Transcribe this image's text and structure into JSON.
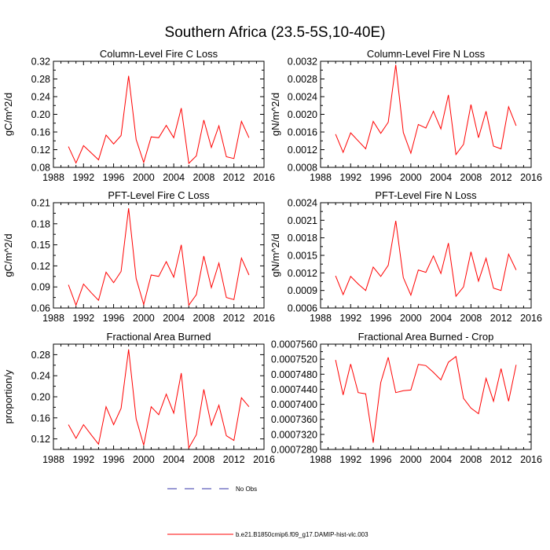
{
  "figure_title": "Southern Africa (23.5-5S,10-40E)",
  "legend": {
    "entries": [
      {
        "label": "No Obs",
        "color": "#3333aa",
        "style": "dashed"
      },
      {
        "label": "b.e21.B1850cmip6.f09_g17.DAMIP-hist-vlc.003",
        "color": "#ff0000",
        "style": "solid"
      }
    ]
  },
  "chart_data": [
    {
      "type": "line",
      "title": "Column-Level Fire C Loss",
      "xlabel": "",
      "ylabel": "gC/m^2/d",
      "xlim": [
        1988,
        2016
      ],
      "ylim": [
        0.08,
        0.32
      ],
      "xticks": [
        1988,
        1992,
        1996,
        2000,
        2004,
        2008,
        2012,
        2016
      ],
      "xtick_labels": [
        "1988",
        "1992",
        "1996",
        "2000",
        "2004",
        "2008",
        "2012",
        "2016"
      ],
      "yticks": [
        0.08,
        0.12,
        0.16,
        0.2,
        0.24,
        0.28,
        0.32
      ],
      "ytick_labels": [
        "0.08",
        "0.12",
        "0.16",
        "0.20",
        "0.24",
        "0.28",
        "0.32"
      ],
      "x": [
        1990,
        1991,
        1992,
        1993,
        1994,
        1995,
        1996,
        1997,
        1998,
        1999,
        2000,
        2001,
        2002,
        2003,
        2004,
        2005,
        2006,
        2007,
        2008,
        2009,
        2010,
        2011,
        2012,
        2013,
        2014
      ],
      "series": [
        {
          "name": "b.e21.B1850cmip6.f09_g17.DAMIP-hist-vlc.003",
          "color": "#ff0000",
          "values": [
            0.127,
            0.09,
            0.129,
            0.113,
            0.097,
            0.153,
            0.133,
            0.152,
            0.287,
            0.143,
            0.091,
            0.149,
            0.147,
            0.175,
            0.147,
            0.214,
            0.089,
            0.106,
            0.187,
            0.125,
            0.174,
            0.104,
            0.1,
            0.184,
            0.147
          ]
        }
      ]
    },
    {
      "type": "line",
      "title": "Column-Level Fire N Loss",
      "xlabel": "",
      "ylabel": "gN/m^2/d",
      "xlim": [
        1988,
        2016
      ],
      "ylim": [
        0.0008,
        0.0032
      ],
      "xticks": [
        1988,
        1992,
        1996,
        2000,
        2004,
        2008,
        2012,
        2016
      ],
      "xtick_labels": [
        "1988",
        "1992",
        "1996",
        "2000",
        "2004",
        "2008",
        "2012",
        "2016"
      ],
      "yticks": [
        0.0008,
        0.0012,
        0.0016,
        0.002,
        0.0024,
        0.0028,
        0.0032
      ],
      "ytick_labels": [
        "0.0008",
        "0.0012",
        "0.0016",
        "0.0020",
        "0.0024",
        "0.0028",
        "0.0032"
      ],
      "x": [
        1990,
        1991,
        1992,
        1993,
        1994,
        1995,
        1996,
        1997,
        1998,
        1999,
        2000,
        2001,
        2002,
        2003,
        2004,
        2005,
        2006,
        2007,
        2008,
        2009,
        2010,
        2011,
        2012,
        2013,
        2014
      ],
      "series": [
        {
          "name": "b.e21.B1850cmip6.f09_g17.DAMIP-hist-vlc.003",
          "color": "#ff0000",
          "values": [
            0.00155,
            0.00114,
            0.00158,
            0.0014,
            0.00122,
            0.00184,
            0.00157,
            0.00182,
            0.00312,
            0.00159,
            0.00112,
            0.00177,
            0.00169,
            0.00207,
            0.00167,
            0.00244,
            0.00109,
            0.00132,
            0.00222,
            0.00147,
            0.00207,
            0.00128,
            0.00122,
            0.00217,
            0.00174
          ]
        }
      ]
    },
    {
      "type": "line",
      "title": "PFT-Level Fire C Loss",
      "xlabel": "",
      "ylabel": "gC/m^2/d",
      "xlim": [
        1988,
        2016
      ],
      "ylim": [
        0.06,
        0.21
      ],
      "xticks": [
        1988,
        1992,
        1996,
        2000,
        2004,
        2008,
        2012,
        2016
      ],
      "xtick_labels": [
        "1988",
        "1992",
        "1996",
        "2000",
        "2004",
        "2008",
        "2012",
        "2016"
      ],
      "yticks": [
        0.06,
        0.09,
        0.12,
        0.15,
        0.18,
        0.21
      ],
      "ytick_labels": [
        "0.06",
        "0.09",
        "0.12",
        "0.15",
        "0.18",
        "0.21"
      ],
      "x": [
        1990,
        1991,
        1992,
        1993,
        1994,
        1995,
        1996,
        1997,
        1998,
        1999,
        2000,
        2001,
        2002,
        2003,
        2004,
        2005,
        2006,
        2007,
        2008,
        2009,
        2010,
        2011,
        2012,
        2013,
        2014
      ],
      "series": [
        {
          "name": "b.e21.B1850cmip6.f09_g17.DAMIP-hist-vlc.003",
          "color": "#ff0000",
          "values": [
            0.093,
            0.064,
            0.094,
            0.082,
            0.071,
            0.111,
            0.096,
            0.112,
            0.202,
            0.102,
            0.065,
            0.107,
            0.105,
            0.126,
            0.104,
            0.15,
            0.064,
            0.079,
            0.134,
            0.089,
            0.124,
            0.075,
            0.072,
            0.131,
            0.107
          ]
        }
      ]
    },
    {
      "type": "line",
      "title": "PFT-Level Fire N Loss",
      "xlabel": "",
      "ylabel": "gN/m^2/d",
      "xlim": [
        1988,
        2016
      ],
      "ylim": [
        0.0006,
        0.0024
      ],
      "xticks": [
        1988,
        1992,
        1996,
        2000,
        2004,
        2008,
        2012,
        2016
      ],
      "xtick_labels": [
        "1988",
        "1992",
        "1996",
        "2000",
        "2004",
        "2008",
        "2012",
        "2016"
      ],
      "yticks": [
        0.0006,
        0.0009,
        0.0012,
        0.0015,
        0.0018,
        0.0021,
        0.0024
      ],
      "ytick_labels": [
        "0.0006",
        "0.0009",
        "0.0012",
        "0.0015",
        "0.0018",
        "0.0021",
        "0.0024"
      ],
      "x": [
        1990,
        1991,
        1992,
        1993,
        1994,
        1995,
        1996,
        1997,
        1998,
        1999,
        2000,
        2001,
        2002,
        2003,
        2004,
        2005,
        2006,
        2007,
        2008,
        2009,
        2010,
        2011,
        2012,
        2013,
        2014
      ],
      "series": [
        {
          "name": "b.e21.B1850cmip6.f09_g17.DAMIP-hist-vlc.003",
          "color": "#ff0000",
          "values": [
            0.00115,
            0.00083,
            0.00114,
            0.00101,
            0.0009,
            0.0013,
            0.00114,
            0.00133,
            0.00209,
            0.00112,
            0.00082,
            0.00125,
            0.00121,
            0.00149,
            0.00119,
            0.00171,
            0.0008,
            0.00096,
            0.00156,
            0.00106,
            0.00145,
            0.00094,
            0.0009,
            0.00152,
            0.00125
          ]
        }
      ]
    },
    {
      "type": "line",
      "title": "Fractional Area Burned",
      "xlabel": "",
      "ylabel": "proportion/y",
      "xlim": [
        1988,
        2016
      ],
      "ylim": [
        0.1,
        0.3
      ],
      "xticks": [
        1988,
        1992,
        1996,
        2000,
        2004,
        2008,
        2012,
        2016
      ],
      "xtick_labels": [
        "1988",
        "1992",
        "1996",
        "2000",
        "2004",
        "2008",
        "2012",
        "2016"
      ],
      "yticks": [
        0.12,
        0.16,
        0.2,
        0.24,
        0.28
      ],
      "ytick_labels": [
        "0.12",
        "0.16",
        "0.20",
        "0.24",
        "0.28"
      ],
      "x": [
        1990,
        1991,
        1992,
        1993,
        1994,
        1995,
        1996,
        1997,
        1998,
        1999,
        2000,
        2001,
        2002,
        2003,
        2004,
        2005,
        2006,
        2007,
        2008,
        2009,
        2010,
        2011,
        2012,
        2013,
        2014
      ],
      "series": [
        {
          "name": "b.e21.B1850cmip6.f09_g17.DAMIP-hist-vlc.003",
          "color": "#ff0000",
          "values": [
            0.147,
            0.121,
            0.147,
            0.128,
            0.11,
            0.181,
            0.147,
            0.178,
            0.29,
            0.158,
            0.108,
            0.181,
            0.166,
            0.205,
            0.169,
            0.245,
            0.103,
            0.128,
            0.214,
            0.146,
            0.184,
            0.126,
            0.117,
            0.198,
            0.181
          ]
        }
      ]
    },
    {
      "type": "line",
      "title": "Fractional Area Burned - Crop",
      "xlabel": "",
      "ylabel": "",
      "xlim": [
        1988,
        2016
      ],
      "ylim": [
        0.000728,
        0.000756
      ],
      "xticks": [
        1988,
        1992,
        1996,
        2000,
        2004,
        2008,
        2012,
        2016
      ],
      "xtick_labels": [
        "1988",
        "1992",
        "1996",
        "2000",
        "2004",
        "2008",
        "2012",
        "2016"
      ],
      "yticks": [
        0.000728,
        0.000732,
        0.000736,
        0.00074,
        0.000744,
        0.000748,
        0.000752,
        0.000756
      ],
      "ytick_labels": [
        "0.0007280",
        "0.0007320",
        "0.0007360",
        "0.0007400",
        "0.0007440",
        "0.0007480",
        "0.0007520",
        "0.0007560"
      ],
      "x": [
        1990,
        1991,
        1992,
        1993,
        1994,
        1995,
        1996,
        1997,
        1998,
        1999,
        2000,
        2001,
        2002,
        2003,
        2004,
        2005,
        2006,
        2007,
        2008,
        2009,
        2010,
        2011,
        2012,
        2013,
        2014
      ],
      "series": [
        {
          "name": "b.e21.B1850cmip6.f09_g17.DAMIP-hist-vlc.003",
          "color": "#ff0000",
          "values": [
            0.0007518,
            0.0007425,
            0.0007507,
            0.0007431,
            0.0007428,
            0.0007298,
            0.0007458,
            0.0007525,
            0.0007431,
            0.0007436,
            0.0007438,
            0.0007506,
            0.0007503,
            0.0007485,
            0.0007465,
            0.0007512,
            0.0007527,
            0.0007416,
            0.000739,
            0.0007375,
            0.0007469,
            0.0007408,
            0.0007495,
            0.0007408,
            0.0007505
          ]
        }
      ]
    }
  ]
}
